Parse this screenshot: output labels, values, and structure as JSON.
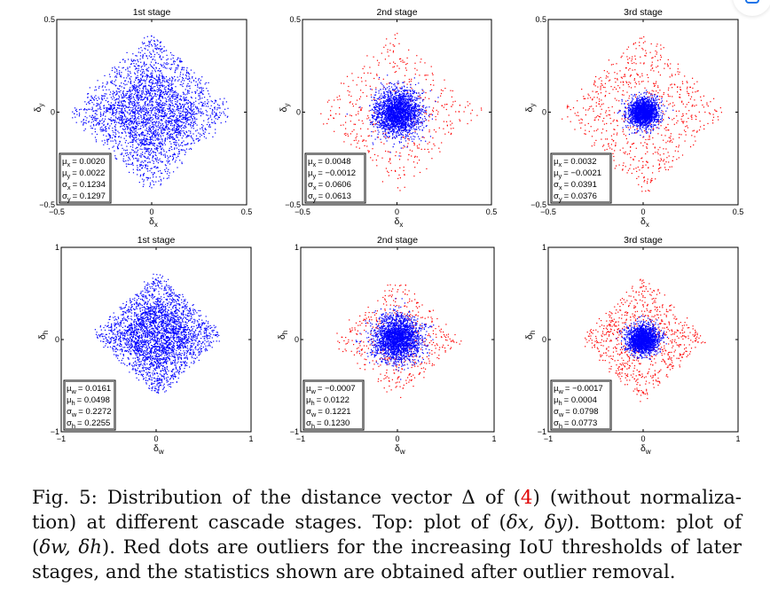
{
  "icons": {
    "corner_button": "screenshot-capture-icon"
  },
  "colors": {
    "inlier": "#0000ff",
    "outlier": "#ff0000",
    "frame": "#000000",
    "ref": "#e00000"
  },
  "chart_data": [
    {
      "type": "scatter",
      "title": "1st stage",
      "xlabel": "δ",
      "xlabel_sub": "x",
      "ylabel": "δ",
      "ylabel_sub": "y",
      "xlim": [
        -0.5,
        0.5
      ],
      "ylim": [
        -0.5,
        0.5
      ],
      "xticks": [
        "−0.5",
        "0",
        "0.5"
      ],
      "yticks": [
        "−0.5",
        "0",
        "0.5"
      ],
      "stats": [
        {
          "sym": "μ",
          "sub": "x",
          "value": "= 0.0020"
        },
        {
          "sym": "μ",
          "sub": "y",
          "value": "= 0.0022"
        },
        {
          "sym": "σ",
          "sub": "x",
          "value": "= 0.1234"
        },
        {
          "sym": "σ",
          "sub": "y",
          "value": "= 0.1297"
        }
      ],
      "series": [
        {
          "name": "inliers",
          "color": "#0000ff",
          "n": 3000,
          "mean": [
            0.002,
            0.0022
          ],
          "std": [
            0.1234,
            0.1297
          ],
          "shape": "diamond",
          "extent": 0.42
        },
        {
          "name": "outliers",
          "color": "#ff0000",
          "n": 0
        }
      ]
    },
    {
      "type": "scatter",
      "title": "2nd stage",
      "xlabel": "δ",
      "xlabel_sub": "x",
      "ylabel": "δ",
      "ylabel_sub": "y",
      "xlim": [
        -0.5,
        0.5
      ],
      "ylim": [
        -0.5,
        0.5
      ],
      "xticks": [
        "−0.5",
        "0",
        "0.5"
      ],
      "yticks": [
        "−0.5",
        "0",
        "0.5"
      ],
      "stats": [
        {
          "sym": "μ",
          "sub": "x",
          "value": "= 0.0048"
        },
        {
          "sym": "μ",
          "sub": "y",
          "value": "= −0.0012"
        },
        {
          "sym": "σ",
          "sub": "x",
          "value": "= 0.0606"
        },
        {
          "sym": "σ",
          "sub": "y",
          "value": "= 0.0613"
        }
      ],
      "series": [
        {
          "name": "inliers",
          "color": "#0000ff",
          "n": 2200,
          "mean": [
            0.0048,
            -0.0012
          ],
          "std": [
            0.0606,
            0.0613
          ],
          "shape": "gauss",
          "extent": 0.26
        },
        {
          "name": "outliers",
          "color": "#ff0000",
          "n": 420,
          "mean": [
            0.0,
            0.0
          ],
          "std": [
            0.12,
            0.12
          ],
          "shape": "ring",
          "extent": 0.45
        }
      ]
    },
    {
      "type": "scatter",
      "title": "3rd stage",
      "xlabel": "δ",
      "xlabel_sub": "x",
      "ylabel": "δ",
      "ylabel_sub": "y",
      "xlim": [
        -0.5,
        0.5
      ],
      "ylim": [
        -0.5,
        0.5
      ],
      "xticks": [
        "−0.5",
        "0",
        "0.5"
      ],
      "yticks": [
        "−0.5",
        "0",
        "0.5"
      ],
      "stats": [
        {
          "sym": "μ",
          "sub": "x",
          "value": "= 0.0032"
        },
        {
          "sym": "μ",
          "sub": "y",
          "value": "= −0.0021"
        },
        {
          "sym": "σ",
          "sub": "x",
          "value": "= 0.0391"
        },
        {
          "sym": "σ",
          "sub": "y",
          "value": "= 0.0376"
        }
      ],
      "series": [
        {
          "name": "inliers",
          "color": "#0000ff",
          "n": 1800,
          "mean": [
            0.0032,
            -0.0021
          ],
          "std": [
            0.0391,
            0.0376
          ],
          "shape": "gauss",
          "extent": 0.18
        },
        {
          "name": "outliers",
          "color": "#ff0000",
          "n": 700,
          "mean": [
            0.0,
            0.0
          ],
          "std": [
            0.1,
            0.1
          ],
          "shape": "ring",
          "extent": 0.45
        }
      ]
    },
    {
      "type": "scatter",
      "title": "1st stage",
      "xlabel": "δ",
      "xlabel_sub": "w",
      "ylabel": "δ",
      "ylabel_sub": "h",
      "xlim": [
        -1,
        1
      ],
      "ylim": [
        -1,
        1
      ],
      "xticks": [
        "−1",
        "0",
        "1"
      ],
      "yticks": [
        "−1",
        "0",
        "1"
      ],
      "stats": [
        {
          "sym": "μ",
          "sub": "w",
          "value": "= 0.0161"
        },
        {
          "sym": "μ",
          "sub": "h",
          "value": "= 0.0498"
        },
        {
          "sym": "σ",
          "sub": "w",
          "value": "= 0.2272"
        },
        {
          "sym": "σ",
          "sub": "h",
          "value": "= 0.2255"
        }
      ],
      "series": [
        {
          "name": "inliers",
          "color": "#0000ff",
          "n": 3000,
          "mean": [
            0.0161,
            0.0498
          ],
          "std": [
            0.2272,
            0.2255
          ],
          "shape": "diamond",
          "extent": 0.66
        },
        {
          "name": "outliers",
          "color": "#ff0000",
          "n": 0
        }
      ]
    },
    {
      "type": "scatter",
      "title": "2nd stage",
      "xlabel": "δ",
      "xlabel_sub": "w",
      "ylabel": "δ",
      "ylabel_sub": "h",
      "xlim": [
        -1,
        1
      ],
      "ylim": [
        -1,
        1
      ],
      "xticks": [
        "−1",
        "0",
        "1"
      ],
      "yticks": [
        "−1",
        "0",
        "1"
      ],
      "stats": [
        {
          "sym": "μ",
          "sub": "w",
          "value": "= −0.0007"
        },
        {
          "sym": "μ",
          "sub": "h",
          "value": "= 0.0122"
        },
        {
          "sym": "σ",
          "sub": "w",
          "value": "= 0.1221"
        },
        {
          "sym": "σ",
          "sub": "h",
          "value": "= 0.1230"
        }
      ],
      "series": [
        {
          "name": "inliers",
          "color": "#0000ff",
          "n": 2200,
          "mean": [
            -0.0007,
            0.0122
          ],
          "std": [
            0.1221,
            0.123
          ],
          "shape": "gauss",
          "extent": 0.45
        },
        {
          "name": "outliers",
          "color": "#ff0000",
          "n": 450,
          "mean": [
            0.0,
            0.0
          ],
          "std": [
            0.2,
            0.2
          ],
          "shape": "ring",
          "extent": 0.68
        }
      ]
    },
    {
      "type": "scatter",
      "title": "3rd stage",
      "xlabel": "δ",
      "xlabel_sub": "w",
      "ylabel": "δ",
      "ylabel_sub": "h",
      "xlim": [
        -1,
        1
      ],
      "ylim": [
        -1,
        1
      ],
      "xticks": [
        "−1",
        "0",
        "1"
      ],
      "yticks": [
        "−1",
        "0",
        "1"
      ],
      "stats": [
        {
          "sym": "μ",
          "sub": "w",
          "value": "= −0.0017"
        },
        {
          "sym": "μ",
          "sub": "h",
          "value": "= 0.0004"
        },
        {
          "sym": "σ",
          "sub": "w",
          "value": "= 0.0798"
        },
        {
          "sym": "σ",
          "sub": "h",
          "value": "= 0.0773"
        }
      ],
      "series": [
        {
          "name": "inliers",
          "color": "#0000ff",
          "n": 1800,
          "mean": [
            -0.0017,
            0.0004
          ],
          "std": [
            0.0798,
            0.0773
          ],
          "shape": "gauss",
          "extent": 0.32
        },
        {
          "name": "outliers",
          "color": "#ff0000",
          "n": 750,
          "mean": [
            0.0,
            0.0
          ],
          "std": [
            0.2,
            0.2
          ],
          "shape": "ring",
          "extent": 0.68
        }
      ]
    }
  ],
  "caption": {
    "line1_a": "Fig. 5: Distribution of the distance vector Δ of (",
    "ref": "4",
    "line1_b": ") (without normaliza-",
    "line2_a": "tion) at different cascade stages. Top: plot of (",
    "line2_math": "δx, δy",
    "line2_b": "). Bottom: plot of",
    "line3_a": "(",
    "line3_math": "δw, δh",
    "line3_b": "). Red dots are outliers for the increasing IoU thresholds of later",
    "line4": "stages, and the statistics shown are obtained after outlier removal."
  }
}
